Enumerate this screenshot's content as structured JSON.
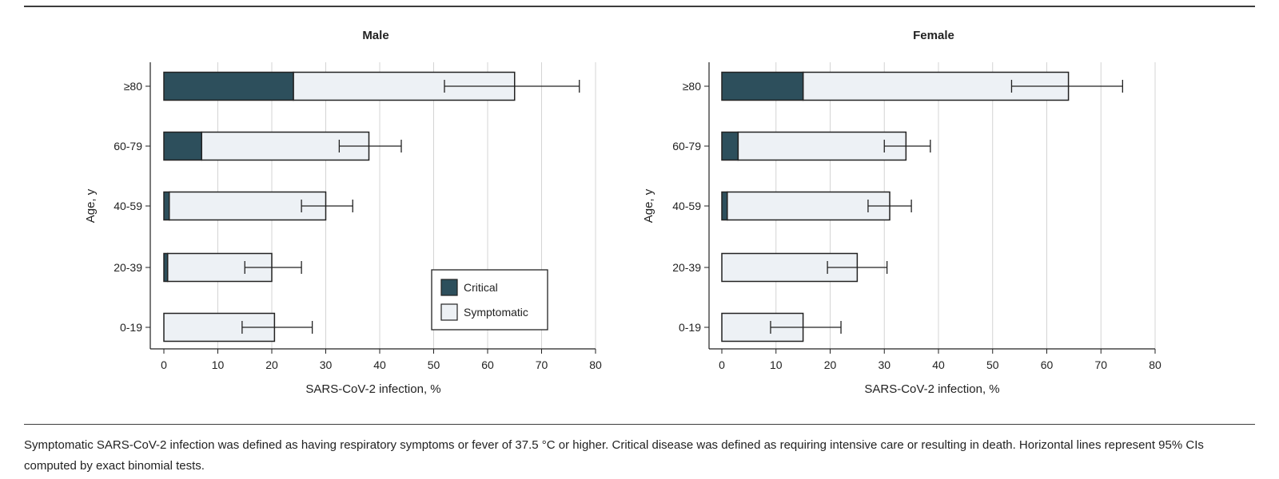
{
  "caption": "Symptomatic SARS-CoV-2 infection was defined as having respiratory symptoms or fever of 37.5 °C or higher. Critical disease was defined as requiring intensive care or resulting in death. Horizontal lines represent 95% CIs computed by exact binomial tests.",
  "colors": {
    "critical": "#2d4f5c",
    "symptomatic": "#edf1f5",
    "stroke": "#222222",
    "grid": "#d4d4d4"
  },
  "chart_data": [
    {
      "type": "bar",
      "orientation": "horizontal",
      "stacked": true,
      "title": "Male",
      "xlabel": "SARS-CoV-2 infection, %",
      "ylabel": "Age, y",
      "xlim": [
        0,
        80
      ],
      "xticks": [
        0,
        10,
        20,
        30,
        40,
        50,
        60,
        70,
        80
      ],
      "grid": "vertical",
      "legend_position": "bottom-right",
      "categories": [
        "≥80",
        "60-79",
        "40-59",
        "20-39",
        "0-19"
      ],
      "series": [
        {
          "name": "Critical",
          "values": [
            24,
            7,
            1,
            0.7,
            0
          ]
        },
        {
          "name": "Symptomatic",
          "values": [
            41,
            31,
            29,
            19.3,
            20.5
          ]
        }
      ],
      "total_values": [
        65,
        38,
        30,
        20,
        20.5
      ],
      "ci": [
        [
          52,
          77
        ],
        [
          32.5,
          44
        ],
        [
          25.5,
          35
        ],
        [
          15,
          25.5
        ],
        [
          14.5,
          27.5
        ]
      ]
    },
    {
      "type": "bar",
      "orientation": "horizontal",
      "stacked": true,
      "title": "Female",
      "xlabel": "SARS-CoV-2 infection, %",
      "ylabel": "Age, y",
      "xlim": [
        0,
        80
      ],
      "xticks": [
        0,
        10,
        20,
        30,
        40,
        50,
        60,
        70,
        80
      ],
      "grid": "vertical",
      "categories": [
        "≥80",
        "60-79",
        "40-59",
        "20-39",
        "0-19"
      ],
      "series": [
        {
          "name": "Critical",
          "values": [
            15,
            3,
            1,
            0,
            0
          ]
        },
        {
          "name": "Symptomatic",
          "values": [
            49,
            31,
            30,
            25,
            15
          ]
        }
      ],
      "total_values": [
        64,
        34,
        31,
        25,
        15
      ],
      "ci": [
        [
          53.5,
          74
        ],
        [
          30,
          38.5
        ],
        [
          27,
          35
        ],
        [
          19.5,
          30.5
        ],
        [
          9,
          22
        ]
      ]
    }
  ]
}
